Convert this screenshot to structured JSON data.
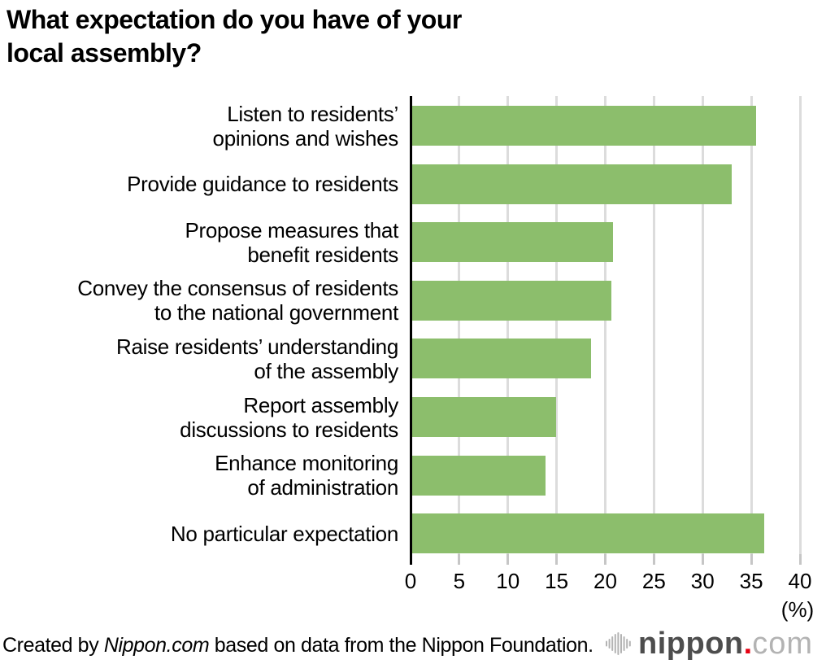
{
  "title": "What expectation do you have of your\nlocal assembly?",
  "chart_data": {
    "type": "bar",
    "orientation": "horizontal",
    "title": "What expectation do you have of your local assembly?",
    "categories": [
      "Listen to residents’\nopinions and wishes",
      "Provide guidance to residents",
      "Propose measures that\nbenefit residents",
      "Convey the consensus of residents\nto the national government",
      "Raise residents’ understanding\nof the assembly",
      "Report assembly\ndiscussions to residents",
      "Enhance monitoring\nof administration",
      "No particular expectation"
    ],
    "values": [
      35.3,
      32.8,
      20.6,
      20.5,
      18.4,
      14.8,
      13.7,
      36.2
    ],
    "xlabel": "",
    "ylabel": "",
    "xlim": [
      0,
      40
    ],
    "xticks": [
      0,
      5,
      10,
      15,
      20,
      25,
      30,
      35,
      40
    ],
    "unit_label": "(%)",
    "grid": true,
    "bar_color": "#8cbe6c",
    "grid_color": "#dcdcdc",
    "axis_color": "#000000"
  },
  "footer": {
    "credit_prefix": "Created by ",
    "credit_brand": "Nippon.com",
    "credit_suffix": " based on data from the Nippon Foundation.",
    "logo": {
      "name": "nippon",
      "dot": ".",
      "tld": "com"
    }
  }
}
